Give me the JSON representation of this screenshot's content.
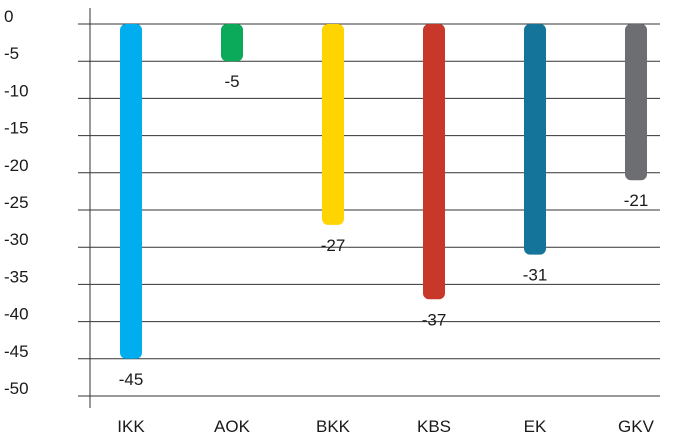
{
  "chart_data": {
    "type": "bar",
    "categories": [
      "IKK",
      "AOK",
      "BKK",
      "KBS",
      "EK",
      "GKV"
    ],
    "values": [
      -45,
      -5,
      -27,
      -37,
      -31,
      -21
    ],
    "value_labels": [
      "-45",
      "-5",
      "-27",
      "-37",
      "-31",
      "-21"
    ],
    "colors": [
      "#00aeef",
      "#0aaa5a",
      "#ffd400",
      "#c8382a",
      "#15749a",
      "#6d6e71"
    ],
    "ylim": [
      -50,
      0
    ],
    "yticks": [
      0,
      -5,
      -10,
      -15,
      -20,
      -25,
      -30,
      -35,
      -40,
      -45,
      -50
    ],
    "ytick_labels": [
      "0",
      "-5",
      "-10",
      "-15",
      "-20",
      "-25",
      "-30",
      "-35",
      "-40",
      "-45",
      "-50"
    ],
    "grid": true,
    "legend": "none",
    "title": "",
    "xlabel": "",
    "ylabel": ""
  }
}
